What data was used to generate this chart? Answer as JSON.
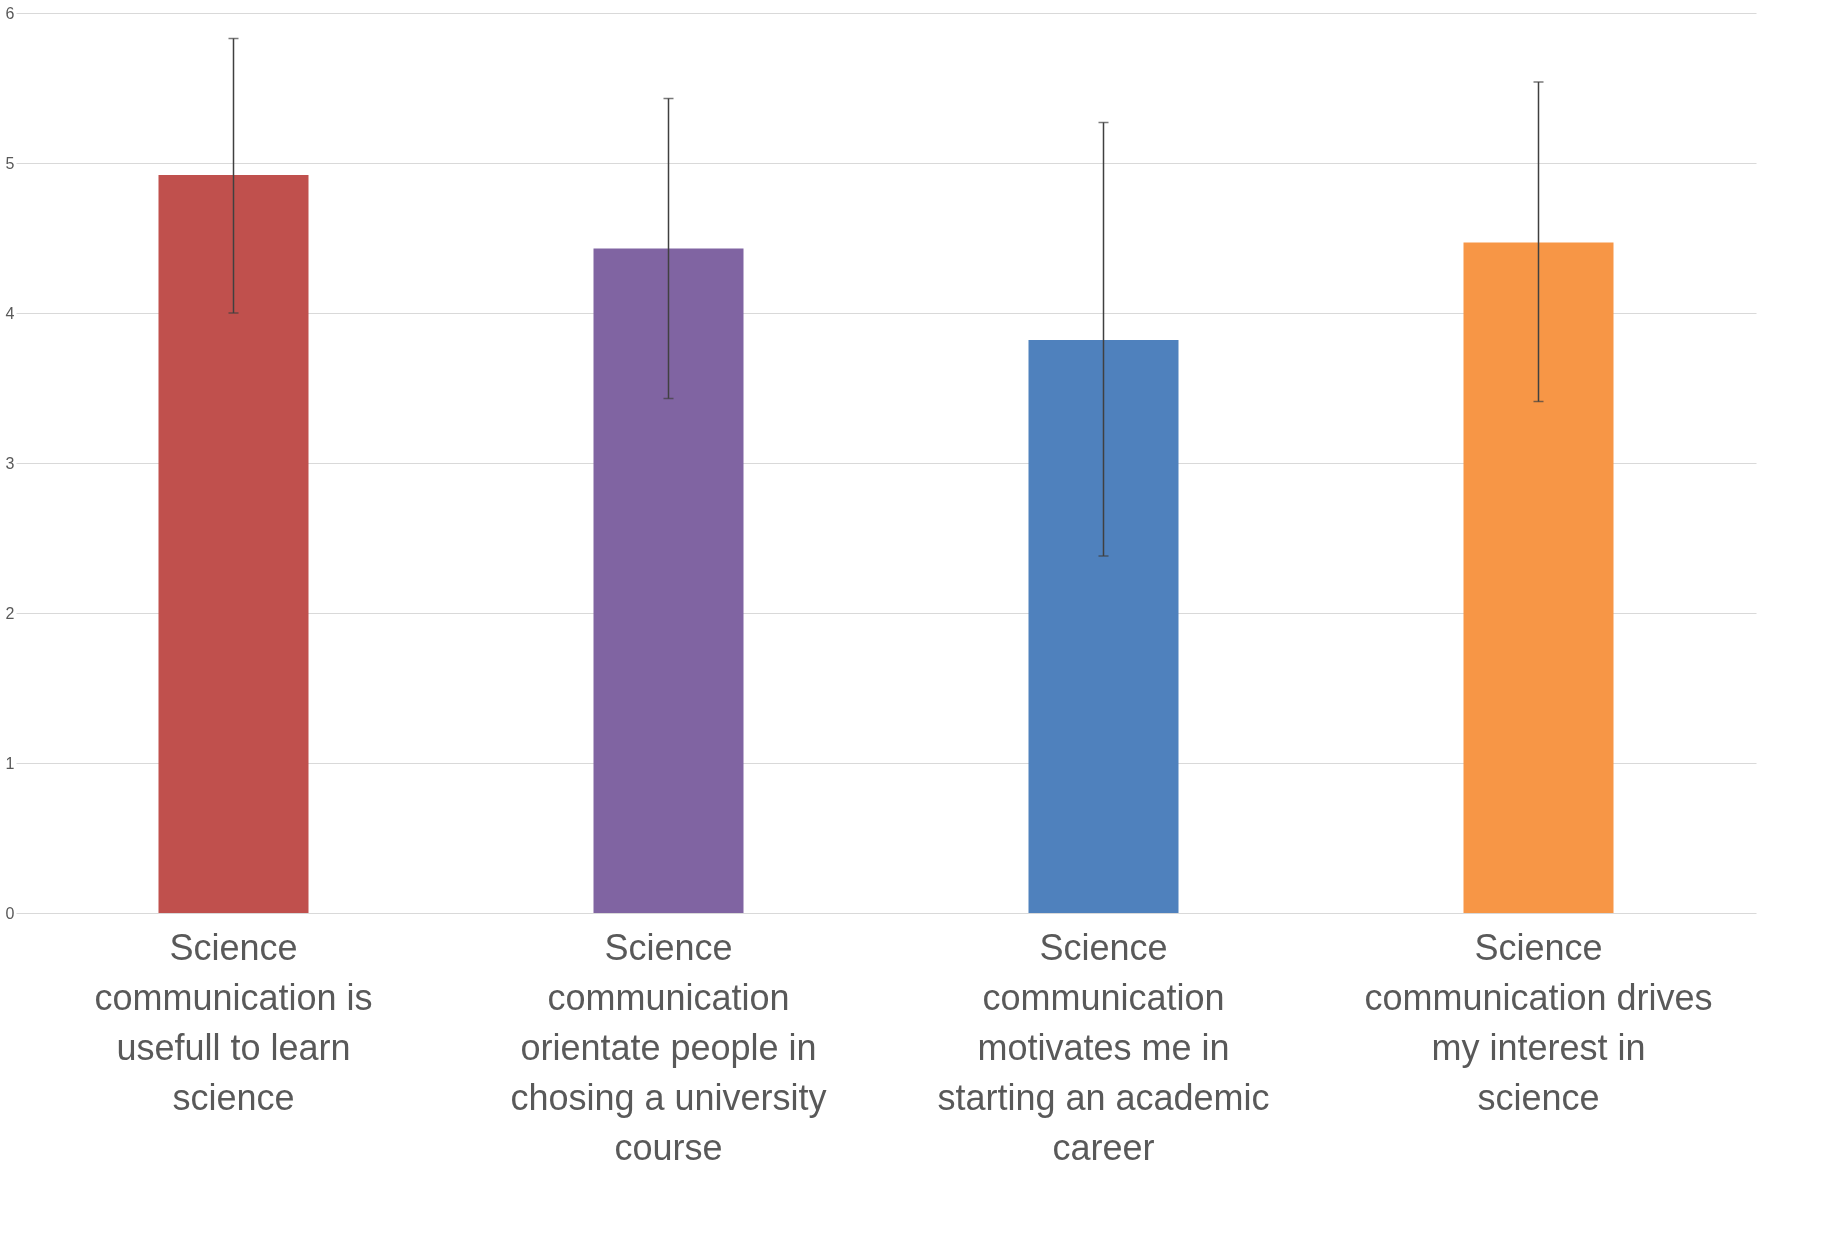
{
  "chart_data": {
    "type": "bar",
    "categories": [
      "Science communication is usefull to learn science",
      "Science communication orientate people in chosing a university course",
      "Science communication motivates me in starting an academic career",
      "Science communication drives my interest in science"
    ],
    "values": [
      4.92,
      4.43,
      3.82,
      4.47
    ],
    "colors": [
      "#c0504d",
      "#8064a2",
      "#4f81bd",
      "#f79646"
    ],
    "errors": [
      [
        4.0,
        5.83
      ],
      [
        3.43,
        5.43
      ],
      [
        2.38,
        5.27
      ],
      [
        3.41,
        5.54
      ]
    ],
    "ylim": [
      0,
      6
    ],
    "yticks": [
      0,
      1,
      2,
      3,
      4,
      5,
      6
    ],
    "grid": "y",
    "legend": false
  }
}
